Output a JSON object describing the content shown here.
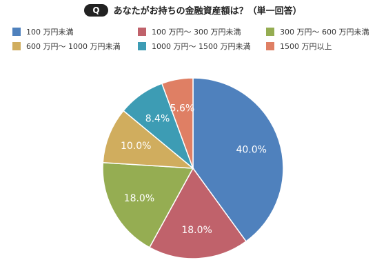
{
  "header": {
    "badge": "Q",
    "title": "あなたがお持ちの金融資産額は？（単一回答）"
  },
  "chart_data": {
    "type": "pie",
    "title": "あなたがお持ちの金融資産額は？（単一回答）",
    "legend_position": "top",
    "start_angle_deg": 0,
    "direction": "clockwise",
    "slices": [
      {
        "label": "100 万円未満",
        "value": 40.0,
        "display": "40.0%",
        "color": "#4f81bd"
      },
      {
        "label": "100 万円～ 300 万円未満",
        "value": 18.0,
        "display": "18.0%",
        "color": "#c0626b"
      },
      {
        "label": "300 万円～ 600 万円未満",
        "value": 18.0,
        "display": "18.0%",
        "color": "#95ad52"
      },
      {
        "label": "600 万円～ 1000 万円未満",
        "value": 10.0,
        "display": "10.0%",
        "color": "#d0ad5e"
      },
      {
        "label": "1000 万円～ 1500 万円未満",
        "value": 8.4,
        "display": "8.4%",
        "color": "#3d9cb4"
      },
      {
        "label": "1500 万円以上",
        "value": 5.6,
        "display": "5.6%",
        "color": "#df7f64"
      }
    ]
  }
}
